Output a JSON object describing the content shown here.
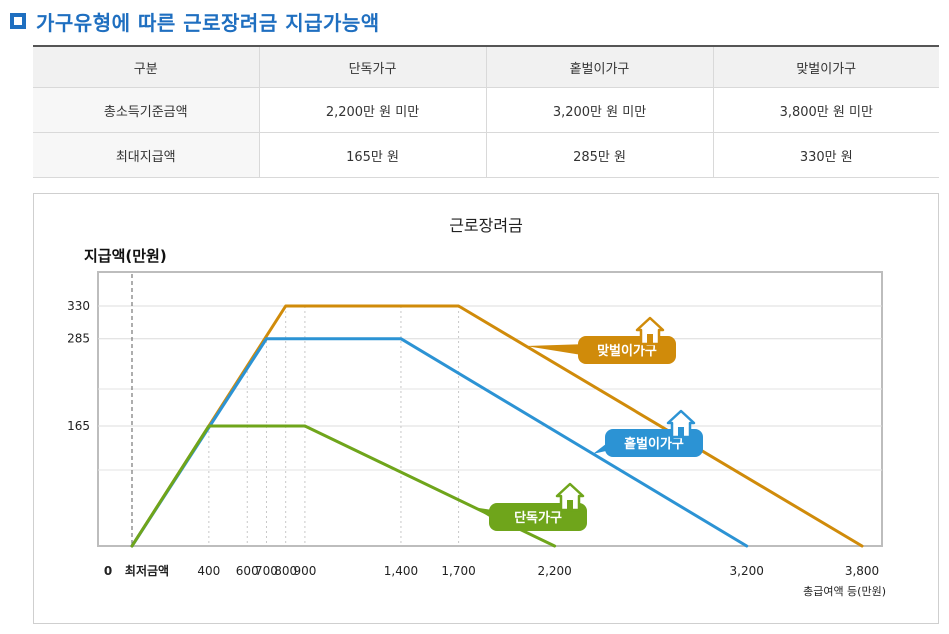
{
  "header": {
    "title": "가구유형에 따른 근로장려금 지급가능액"
  },
  "table": {
    "headers": [
      "구분",
      "단독가구",
      "홑벌이가구",
      "맞벌이가구"
    ],
    "rows": [
      [
        "총소득기준금액",
        "2,200만 원 미만",
        "3,200만 원 미만",
        "3,800만 원 미만"
      ],
      [
        "최대지급액",
        "165만 원",
        "285만 원",
        "330만 원"
      ]
    ]
  },
  "chart_data": {
    "type": "line",
    "title": "근로장려금",
    "ylabel": "지급액(만원)",
    "xlabel": "총급여액 등(만원)",
    "x_zero_label": "0",
    "x_min_label": "최저금액",
    "x_ticks": [
      400,
      600,
      700,
      800,
      900,
      1400,
      1700,
      2200,
      3200,
      3800
    ],
    "x_tick_labels": [
      "400",
      "600",
      "700",
      "800",
      "900",
      "1,400",
      "1,700",
      "2,200",
      "3,200",
      "3,800"
    ],
    "y_ticks": [
      165,
      285,
      330
    ],
    "xlim": [
      0,
      3800
    ],
    "ylim": [
      0,
      360
    ],
    "series": [
      {
        "name": "맞벌이가구",
        "color": "#d08b0a",
        "points": [
          [
            0,
            0
          ],
          [
            800,
            330
          ],
          [
            1700,
            330
          ],
          [
            3800,
            0
          ]
        ]
      },
      {
        "name": "홑벌이가구",
        "color": "#2c93d4",
        "points": [
          [
            0,
            0
          ],
          [
            700,
            285
          ],
          [
            1400,
            285
          ],
          [
            3200,
            0
          ]
        ]
      },
      {
        "name": "단독가구",
        "color": "#6fa51b",
        "points": [
          [
            0,
            0
          ],
          [
            400,
            165
          ],
          [
            900,
            165
          ],
          [
            2200,
            0
          ]
        ]
      }
    ]
  }
}
